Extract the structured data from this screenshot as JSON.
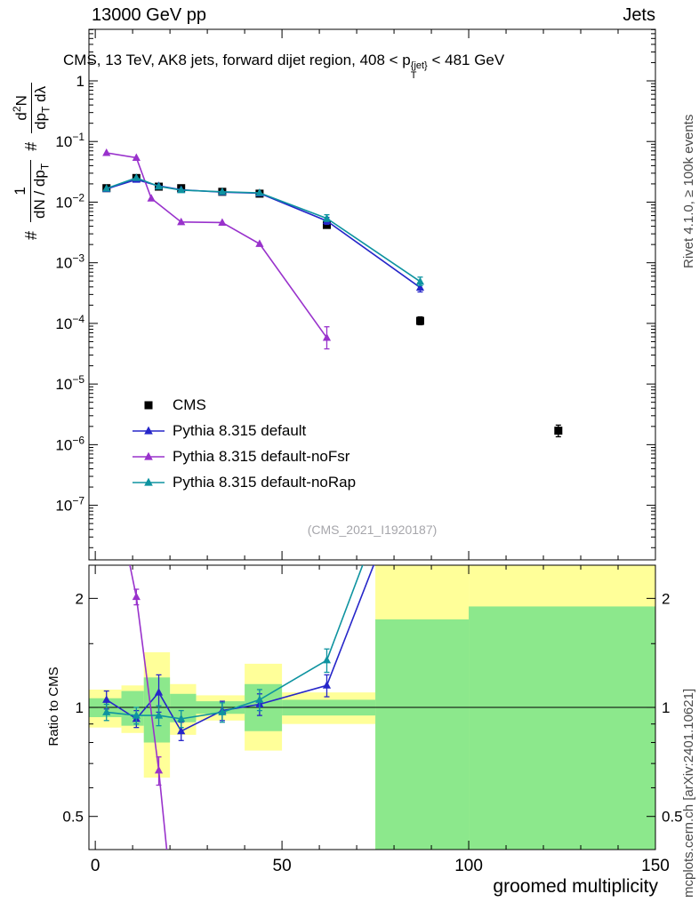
{
  "header": {
    "left": "13000 GeV pp",
    "right": "Jets"
  },
  "plot_title": {
    "text_before": "CMS, 13 TeV, AK8 jets, forward dijet region, 408 < p",
    "sup": "{jet}",
    "sub": "T",
    "text_after": " < 481 GeV"
  },
  "main_y_title": {
    "hash1": "#",
    "frac1_num": "1",
    "frac1_den_main": "dN / dp",
    "frac1_den_sub": "T",
    "hash2": "#",
    "frac2_num_a": "d",
    "frac2_num_sup": "2",
    "frac2_num_b": "N",
    "frac2_den_a": "dp",
    "frac2_den_sub": "T",
    "frac2_den_b": " dλ"
  },
  "watermark": "(CMS_2021_I1920187)",
  "side_labels": {
    "rivet": "Rivet 4.1.0, ≥ 100k events",
    "mcplots": "mcplots.cern.ch [arXiv:2401.10621]"
  },
  "chart_data": [
    {
      "type": "line",
      "panel": "main",
      "title": "CMS, 13 TeV, AK8 jets, forward dijet region, 408 < pT{jet} < 481 GeV",
      "xlabel": "groomed multiplicity",
      "ylabel": "# 1/(dN/dpT) d2N/(dpT dlambda)",
      "xlim": [
        -1.7,
        150
      ],
      "x_ticks": [
        0,
        50,
        100,
        150
      ],
      "x_minor_step": 10,
      "y_scale": "log",
      "ylim_exp": [
        -7.9,
        0.85
      ],
      "y_tick_exps": [
        0,
        -1,
        -2,
        -3,
        -4,
        -5,
        -6,
        -7
      ],
      "series": [
        {
          "name": "CMS",
          "color": "#000000",
          "marker": "square",
          "line": false,
          "points": [
            [
              3,
              0.017
            ],
            [
              11,
              0.025
            ],
            [
              17,
              0.018
            ],
            [
              23,
              0.017
            ],
            [
              34,
              0.0148
            ],
            [
              44,
              0.0138
            ],
            [
              62,
              0.0042,
              0.0038,
              0.0047
            ],
            [
              87,
              0.00011,
              9.5e-05,
              0.000128
            ],
            [
              124,
              1.7e-06,
              1.35e-06,
              2.1e-06
            ]
          ]
        },
        {
          "name": "Pythia 8.315 default",
          "color": "#2626c9",
          "marker": "triangle",
          "line": true,
          "points": [
            [
              3,
              0.0165
            ],
            [
              11,
              0.0235
            ],
            [
              17,
              0.0185
            ],
            [
              23,
              0.016
            ],
            [
              34,
              0.0146
            ],
            [
              44,
              0.014
            ],
            [
              62,
              0.0049,
              0.0043,
              0.0056
            ],
            [
              87,
              0.00039,
              0.00033,
              0.00046
            ]
          ]
        },
        {
          "name": "Pythia 8.315 default-noFsr",
          "color": "#9932cc",
          "marker": "triangle",
          "line": true,
          "points": [
            [
              3,
              0.065
            ],
            [
              11,
              0.054
            ],
            [
              15,
              0.0115
            ],
            [
              23,
              0.0047
            ],
            [
              34,
              0.0046
            ],
            [
              44,
              0.00205
            ],
            [
              62,
              5.8e-05,
              3.8e-05,
              8.8e-05
            ]
          ]
        },
        {
          "name": "Pythia 8.315 default-noRap",
          "color": "#0e93a0",
          "marker": "triangle",
          "line": true,
          "points": [
            [
              3,
              0.0168
            ],
            [
              11,
              0.0252
            ],
            [
              17,
              0.0182
            ],
            [
              23,
              0.0158
            ],
            [
              34,
              0.0148
            ],
            [
              44,
              0.0142
            ],
            [
              62,
              0.0054,
              0.0048,
              0.0062
            ],
            [
              87,
              0.00049,
              0.00042,
              0.00058
            ]
          ]
        }
      ]
    },
    {
      "type": "ratio",
      "panel": "ratio",
      "ylabel": "Ratio to CMS",
      "y_scale": "log",
      "ylim": [
        0.405,
        2.47
      ],
      "y_ticks": [
        0.5,
        1,
        2
      ],
      "y_minor_ticks": [
        0.6,
        0.7,
        0.8,
        0.9,
        1.5
      ],
      "reference": 1,
      "band_colors": {
        "yellow": "#ffff99",
        "green": "#8ce88c"
      },
      "bands": [
        {
          "x0": -1.7,
          "x1": 7,
          "lo": 0.88,
          "hi": 1.12,
          "fill": "yellow"
        },
        {
          "x0": 7,
          "x1": 13,
          "lo": 0.85,
          "hi": 1.15,
          "fill": "yellow"
        },
        {
          "x0": 13,
          "x1": 20,
          "lo": 0.64,
          "hi": 1.42,
          "fill": "yellow"
        },
        {
          "x0": 20,
          "x1": 27,
          "lo": 0.84,
          "hi": 1.16,
          "fill": "yellow"
        },
        {
          "x0": 27,
          "x1": 40,
          "lo": 0.92,
          "hi": 1.08,
          "fill": "yellow"
        },
        {
          "x0": 40,
          "x1": 50,
          "lo": 0.76,
          "hi": 1.32,
          "fill": "yellow"
        },
        {
          "x0": 50,
          "x1": 75,
          "lo": 0.9,
          "hi": 1.1,
          "fill": "yellow"
        },
        {
          "x0": 75,
          "x1": 100,
          "lo": 0.405,
          "hi": 2.47,
          "fill": "yellow"
        },
        {
          "x0": 100,
          "x1": 150,
          "lo": 0.405,
          "hi": 2.47,
          "fill": "yellow"
        },
        {
          "x0": -1.7,
          "x1": 7,
          "lo": 0.94,
          "hi": 1.06,
          "fill": "green"
        },
        {
          "x0": 7,
          "x1": 13,
          "lo": 0.89,
          "hi": 1.11,
          "fill": "green"
        },
        {
          "x0": 13,
          "x1": 20,
          "lo": 0.8,
          "hi": 1.21,
          "fill": "green"
        },
        {
          "x0": 20,
          "x1": 27,
          "lo": 0.91,
          "hi": 1.09,
          "fill": "green"
        },
        {
          "x0": 27,
          "x1": 40,
          "lo": 0.96,
          "hi": 1.04,
          "fill": "green"
        },
        {
          "x0": 40,
          "x1": 50,
          "lo": 0.86,
          "hi": 1.16,
          "fill": "green"
        },
        {
          "x0": 50,
          "x1": 75,
          "lo": 0.95,
          "hi": 1.05,
          "fill": "green"
        },
        {
          "x0": 75,
          "x1": 100,
          "lo": 0.405,
          "hi": 1.75,
          "fill": "green"
        },
        {
          "x0": 100,
          "x1": 150,
          "lo": 0.405,
          "hi": 1.9,
          "fill": "green"
        }
      ],
      "series": [
        {
          "name": "Pythia 8.315 default",
          "color": "#2626c9",
          "marker": "triangle",
          "points": [
            [
              3,
              1.05,
              0.06
            ],
            [
              11,
              0.93,
              0.05
            ],
            [
              17,
              1.1,
              0.13
            ],
            [
              23,
              0.86,
              0.05
            ],
            [
              34,
              0.98,
              0.06
            ],
            [
              44,
              1.02,
              0.07
            ],
            [
              62,
              1.15,
              0.08
            ],
            [
              76,
              2.7,
              0
            ]
          ]
        },
        {
          "name": "Pythia 8.315 default-noFsr",
          "color": "#9932cc",
          "marker": "triangle",
          "points": [
            [
              8.5,
              2.7,
              0
            ],
            [
              11,
              2.02,
              0.1
            ],
            [
              17,
              0.67,
              0.06
            ],
            [
              20,
              0.33,
              0
            ]
          ]
        },
        {
          "name": "Pythia 8.315 default-noRap",
          "color": "#0e93a0",
          "marker": "triangle",
          "points": [
            [
              3,
              0.97,
              0.05
            ],
            [
              11,
              0.95,
              0.05
            ],
            [
              17,
              0.95,
              0.06
            ],
            [
              23,
              0.93,
              0.05
            ],
            [
              34,
              0.97,
              0.06
            ],
            [
              44,
              1.05,
              0.07
            ],
            [
              62,
              1.35,
              0.1
            ],
            [
              73,
              2.7,
              0
            ]
          ]
        }
      ]
    }
  ]
}
